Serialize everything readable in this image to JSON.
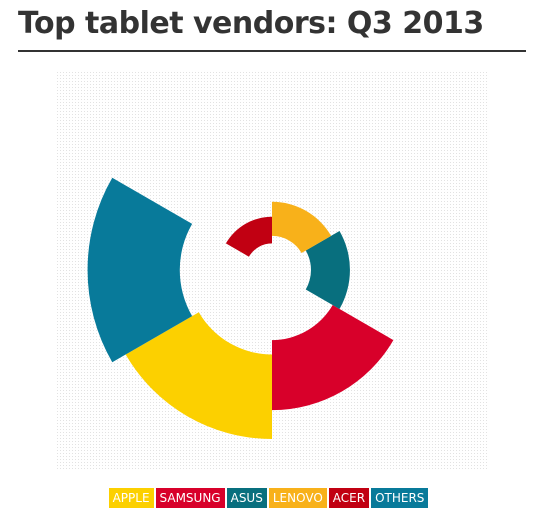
{
  "chart_data": {
    "type": "polar-area",
    "title": "Top tablet vendors: Q3 2013",
    "categories": [
      "APPLE",
      "SAMSUNG",
      "ASUS",
      "LENOVO",
      "ACER",
      "OTHERS"
    ],
    "values": [
      14.1,
      9.7,
      3.0,
      2.3,
      1.4,
      16.8
    ],
    "colors": [
      "#fcd000",
      "#d8002a",
      "#086f7e",
      "#f8b11a",
      "#c10012",
      "#087a9a"
    ]
  }
}
